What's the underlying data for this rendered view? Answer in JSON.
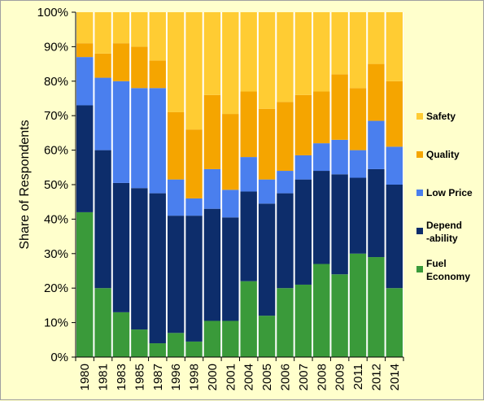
{
  "chart_data": {
    "type": "bar",
    "stacked": "percent",
    "ylabel": "Share of Respondents",
    "ylim": [
      0,
      100
    ],
    "ytick_labels": [
      "0%",
      "10%",
      "20%",
      "30%",
      "40%",
      "50%",
      "60%",
      "70%",
      "80%",
      "90%",
      "100%"
    ],
    "grid": false,
    "legend_position": "right",
    "categories": [
      "1980",
      "1981",
      "1983",
      "1985",
      "1987",
      "1996",
      "1998",
      "2000",
      "2001",
      "2004",
      "2005",
      "2006",
      "2007",
      "2008",
      "2009",
      "2011",
      "2012",
      "2014"
    ],
    "series": [
      {
        "name": "Fuel Economy",
        "legend_lines": [
          "Fuel",
          "Economy"
        ],
        "color": "#3a9a3a",
        "values": [
          42,
          20,
          13,
          8,
          4,
          7,
          4.5,
          10.5,
          10.5,
          22,
          12,
          20,
          21,
          27,
          24,
          30,
          29,
          20
        ]
      },
      {
        "name": "Dependability",
        "legend_lines": [
          "Depend",
          "-ability"
        ],
        "color": "#0d2d6b",
        "values": [
          31,
          40,
          37.5,
          41,
          43.5,
          34,
          36.5,
          32.5,
          30,
          26,
          32.5,
          27.5,
          30.5,
          27,
          29,
          22,
          25.5,
          30
        ]
      },
      {
        "name": "Low Price",
        "legend_lines": [
          "Low Price"
        ],
        "color": "#4a7fee",
        "values": [
          14,
          21,
          29.5,
          29,
          30.5,
          10.5,
          5,
          11.5,
          8,
          10,
          7,
          6.5,
          7,
          8,
          10,
          8,
          14,
          11
        ]
      },
      {
        "name": "Quality",
        "legend_lines": [
          "Quality"
        ],
        "color": "#f5a500",
        "values": [
          4,
          7,
          11,
          12,
          8,
          19.5,
          20,
          21.5,
          22,
          19,
          20.5,
          20,
          17.5,
          15,
          19,
          18,
          16.5,
          19
        ]
      },
      {
        "name": "Safety",
        "legend_lines": [
          "Safety"
        ],
        "color": "#ffcc33",
        "values": [
          9,
          12,
          9,
          10,
          14,
          29,
          34,
          24,
          29.5,
          23,
          28,
          26,
          24,
          23,
          18,
          22,
          15,
          20
        ]
      }
    ]
  }
}
